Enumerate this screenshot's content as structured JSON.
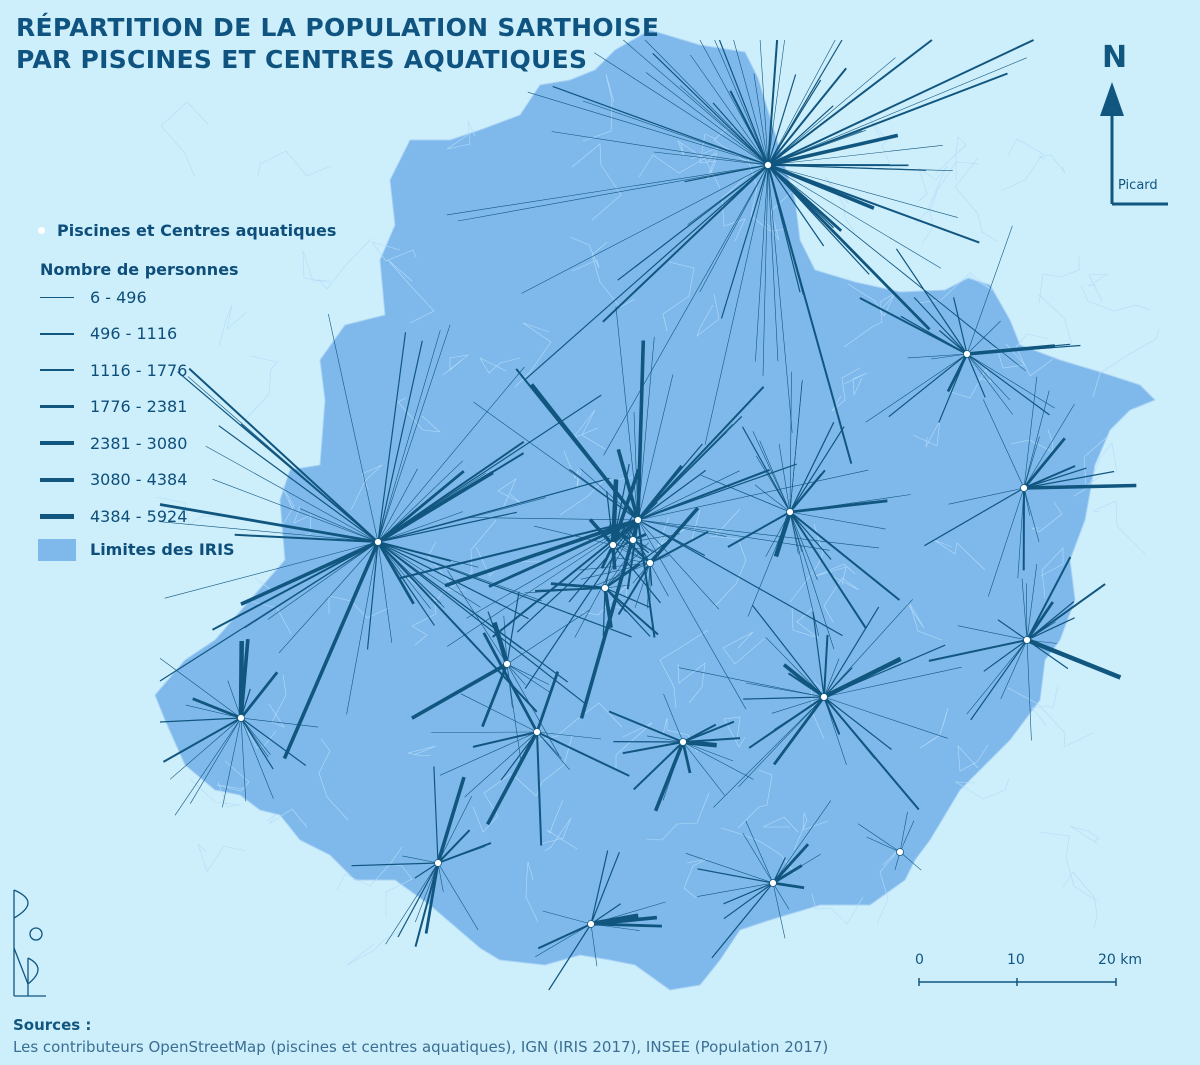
{
  "title": {
    "line1": "RÉPARTITION DE LA POPULATION SARTHOISE",
    "line2": "PAR PISCINES ET CENTRES AQUATIQUES"
  },
  "legend": {
    "pools_label": "Piscines et Centres aquatiques",
    "count_heading": "Nombre de personnes",
    "classes": [
      {
        "label": "6 - 496",
        "thickness": 1
      },
      {
        "label": "496 - 1116",
        "thickness": 2
      },
      {
        "label": "1116 - 1776",
        "thickness": 3
      },
      {
        "label": "1776 - 2381",
        "thickness": 4
      },
      {
        "label": "2381 - 3080",
        "thickness": 5
      },
      {
        "label": "3080 - 4384",
        "thickness": 6
      },
      {
        "label": "4384 - 5924",
        "thickness": 7
      }
    ],
    "iris_label": "Limites des IRIS"
  },
  "north_arrow": {
    "letter": "N",
    "author": "Picard"
  },
  "scale_bar": {
    "ticks": [
      "0",
      "10",
      "20 km"
    ]
  },
  "sources": {
    "heading": "Sources :",
    "text": "Les contributeurs OpenStreetMap (piscines et centres aquatiques), IGN (IRIS 2017), INSEE (Population 2017)"
  },
  "colors": {
    "background": "#cdeefb",
    "territory": "#7fb9ec",
    "flow": "#11567f",
    "pool": "#ffffff",
    "text": "#0d4f7a"
  },
  "pools": [
    {
      "name": "pool-north",
      "lines": 70
    },
    {
      "name": "pool-northeast",
      "lines": 22
    },
    {
      "name": "pool-east",
      "lines": 18
    },
    {
      "name": "pool-east-south",
      "lines": 20
    },
    {
      "name": "pool-east-center",
      "lines": 30
    },
    {
      "name": "pool-west",
      "lines": 55
    },
    {
      "name": "pool-city-north",
      "lines": 45
    },
    {
      "name": "pool-city-west",
      "lines": 14
    },
    {
      "name": "pool-city-center",
      "lines": 10
    },
    {
      "name": "pool-city-east",
      "lines": 20
    },
    {
      "name": "pool-city-south",
      "lines": 16
    },
    {
      "name": "pool-center-west",
      "lines": 14
    },
    {
      "name": "pool-far-west",
      "lines": 22
    },
    {
      "name": "pool-center",
      "lines": 14
    },
    {
      "name": "pool-center-south",
      "lines": 16
    },
    {
      "name": "pool-southeast",
      "lines": 28
    },
    {
      "name": "pool-southwest",
      "lines": 16
    },
    {
      "name": "pool-south",
      "lines": 14
    },
    {
      "name": "pool-south-east",
      "lines": 16
    },
    {
      "name": "pool-far-southeast",
      "lines": 6
    }
  ]
}
